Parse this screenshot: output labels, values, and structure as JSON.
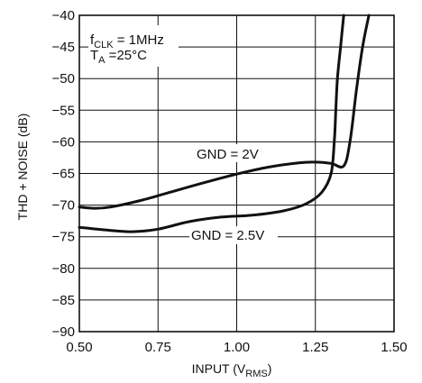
{
  "chart_data": {
    "type": "line",
    "xlabel": {
      "main": "INPUT (V",
      "sub": "RMS",
      "end": ")"
    },
    "ylabel": "THD + NOISE (dB)",
    "xlim": [
      0.5,
      1.5
    ],
    "ylim": [
      -90,
      -40
    ],
    "x_ticks": [
      "0.50",
      "0.75",
      "1.00",
      "1.25",
      "1.50"
    ],
    "y_ticks": [
      "−40",
      "−45",
      "−50",
      "−55",
      "−60",
      "−65",
      "−70",
      "−75",
      "−80",
      "−85",
      "−90"
    ],
    "grid": true,
    "annotations": {
      "fclk": {
        "main": "f",
        "sub": "CLK",
        "rest": " = 1MHz"
      },
      "ta": {
        "main": "T",
        "sub": "A",
        "rest": " =25°C"
      }
    },
    "series": [
      {
        "name": "GND = 2V",
        "points": [
          [
            0.5,
            -70.3
          ],
          [
            0.55,
            -70.5
          ],
          [
            0.6,
            -70.3
          ],
          [
            0.7,
            -69.2
          ],
          [
            0.8,
            -67.8
          ],
          [
            0.9,
            -66.4
          ],
          [
            1.0,
            -65.1
          ],
          [
            1.1,
            -64.0
          ],
          [
            1.2,
            -63.3
          ],
          [
            1.25,
            -63.2
          ],
          [
            1.3,
            -63.4
          ],
          [
            1.34,
            -63.8
          ],
          [
            1.36,
            -60
          ],
          [
            1.38,
            -52
          ],
          [
            1.4,
            -45
          ],
          [
            1.42,
            -40
          ]
        ]
      },
      {
        "name": "GND = 2.5V",
        "points": [
          [
            0.5,
            -73.5
          ],
          [
            0.6,
            -74.0
          ],
          [
            0.67,
            -74.2
          ],
          [
            0.75,
            -73.8
          ],
          [
            0.85,
            -72.6
          ],
          [
            0.95,
            -71.9
          ],
          [
            1.05,
            -71.6
          ],
          [
            1.15,
            -70.9
          ],
          [
            1.22,
            -69.8
          ],
          [
            1.27,
            -68.0
          ],
          [
            1.3,
            -65.0
          ],
          [
            1.31,
            -60
          ],
          [
            1.315,
            -55
          ],
          [
            1.32,
            -50
          ],
          [
            1.33,
            -45
          ],
          [
            1.34,
            -40
          ]
        ]
      }
    ],
    "labels": [
      {
        "series": 0,
        "text": "GND = 2V"
      },
      {
        "series": 1,
        "text": "GND = 2.5V"
      }
    ]
  }
}
